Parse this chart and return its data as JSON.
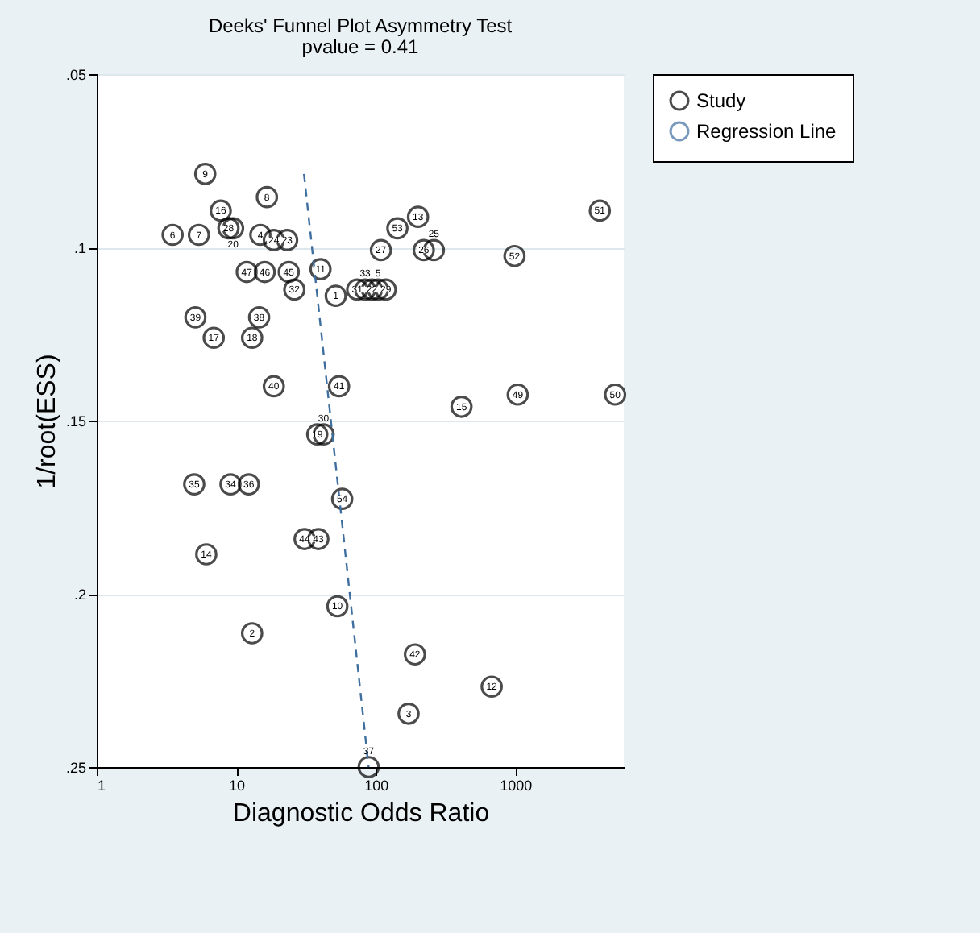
{
  "chart_data": {
    "type": "scatter",
    "title": "Deeks' Funnel Plot Asymmetry Test",
    "subtitle": "pvalue =  0.41",
    "xlabel": "Diagnostic Odds Ratio",
    "ylabel": "1/root(ESS)",
    "log": "x",
    "xlim": [
      1,
      6000
    ],
    "xticks": [
      1,
      10,
      100,
      1000
    ],
    "ylim": [
      0.25,
      0.05
    ],
    "yticks": [
      {
        "value": 0.05,
        "label": ".05"
      },
      {
        "value": 0.1,
        "label": ".1"
      },
      {
        "value": 0.15,
        "label": ".15"
      },
      {
        "value": 0.2,
        "label": ".2"
      },
      {
        "value": 0.25,
        "label": ".25"
      }
    ],
    "grid": "y",
    "legend": "top right",
    "series": [
      {
        "name": "Study",
        "type": "scatter",
        "marker": "circle",
        "color": "#000000",
        "x": [
          6.0,
          16.6,
          7.75,
          3.5,
          5.4,
          8.8,
          9.5,
          14.9,
          18.6,
          23.2,
          11.9,
          16.0,
          23.8,
          26.1,
          40.2,
          51.7,
          5.1,
          14.6,
          6.9,
          13.0,
          143,
          201,
          4040,
          109,
          221,
          261,
          988,
          73.6,
          84,
          94,
          104,
          118,
          18.6,
          54.6,
          38.1,
          42.3,
          5.0,
          9.1,
          12.3,
          57.5,
          30.9,
          38.8,
          6.1,
          53.1,
          13.0,
          89,
          412,
          1042,
          5200,
          191,
          678,
          172
        ],
        "values": [
          0.0788,
          0.0855,
          0.0894,
          0.0964,
          0.0964,
          0.0945,
          0.0945,
          0.0964,
          0.0979,
          0.0979,
          0.1071,
          0.1071,
          0.1071,
          0.1122,
          0.1063,
          0.114,
          0.1202,
          0.1202,
          0.1261,
          0.1261,
          0.0945,
          0.0912,
          0.0894,
          0.1008,
          0.1008,
          0.1008,
          0.1025,
          0.1122,
          0.1122,
          0.1122,
          0.1122,
          0.1122,
          0.1401,
          0.1401,
          0.154,
          0.154,
          0.1684,
          0.1684,
          0.1684,
          0.1726,
          0.1842,
          0.1842,
          0.1886,
          0.2036,
          0.2114,
          0.25,
          0.146,
          0.1425,
          0.1425,
          0.2175,
          0.2268,
          0.2346
        ]
      },
      {
        "name": "Regression Line",
        "type": "line",
        "color": "#3f6f9f",
        "line_style": "dashed",
        "x": [
          30.6,
          89
        ],
        "values": [
          0.0788,
          0.25
        ]
      }
    ],
    "annotations": [
      {
        "text": "9",
        "x": 6.0,
        "y": 0.0788
      },
      {
        "text": "8",
        "x": 16.6,
        "y": 0.0855
      },
      {
        "text": "16",
        "x": 7.75,
        "y": 0.0894
      },
      {
        "text": "6",
        "x": 3.5,
        "y": 0.0964
      },
      {
        "text": "7",
        "x": 5.4,
        "y": 0.0964
      },
      {
        "text": "28",
        "x": 8.8,
        "y": 0.0945
      },
      {
        "text": "20",
        "x": 9.5,
        "y": 0.0945
      },
      {
        "text": "4",
        "x": 14.9,
        "y": 0.0964
      },
      {
        "text": "24",
        "x": 18.6,
        "y": 0.0979
      },
      {
        "text": "23",
        "x": 23.2,
        "y": 0.0979
      },
      {
        "text": "47",
        "x": 11.9,
        "y": 0.1071
      },
      {
        "text": "46",
        "x": 16.0,
        "y": 0.1071
      },
      {
        "text": "45",
        "x": 23.8,
        "y": 0.1071
      },
      {
        "text": "32",
        "x": 26.1,
        "y": 0.1122
      },
      {
        "text": "11",
        "x": 40.2,
        "y": 0.1063
      },
      {
        "text": "1",
        "x": 51.7,
        "y": 0.114
      },
      {
        "text": "39",
        "x": 5.1,
        "y": 0.1202
      },
      {
        "text": "38",
        "x": 14.6,
        "y": 0.1202
      },
      {
        "text": "17",
        "x": 6.9,
        "y": 0.1261
      },
      {
        "text": "18",
        "x": 13.0,
        "y": 0.1261
      },
      {
        "text": "53",
        "x": 143,
        "y": 0.0945
      },
      {
        "text": "13",
        "x": 201,
        "y": 0.0912
      },
      {
        "text": "51",
        "x": 4040,
        "y": 0.0894
      },
      {
        "text": "27",
        "x": 109,
        "y": 0.1008
      },
      {
        "text": "26",
        "x": 221,
        "y": 0.1008
      },
      {
        "text": "25",
        "x": 261,
        "y": 0.1008
      },
      {
        "text": "52",
        "x": 988,
        "y": 0.1025
      },
      {
        "text": "31",
        "x": 73.6,
        "y": 0.1122
      },
      {
        "text": "33",
        "x": 84,
        "y": 0.1122
      },
      {
        "text": "22",
        "x": 94,
        "y": 0.1122
      },
      {
        "text": "5",
        "x": 104,
        "y": 0.1122
      },
      {
        "text": "29",
        "x": 118,
        "y": 0.1122
      },
      {
        "text": "40",
        "x": 18.6,
        "y": 0.1401
      },
      {
        "text": "41",
        "x": 54.6,
        "y": 0.1401
      },
      {
        "text": "19",
        "x": 38.1,
        "y": 0.154
      },
      {
        "text": "30",
        "x": 42.3,
        "y": 0.154
      },
      {
        "text": "35",
        "x": 5.0,
        "y": 0.1684
      },
      {
        "text": "34",
        "x": 9.1,
        "y": 0.1684
      },
      {
        "text": "36",
        "x": 12.3,
        "y": 0.1684
      },
      {
        "text": "54",
        "x": 57.5,
        "y": 0.1726
      },
      {
        "text": "44",
        "x": 30.9,
        "y": 0.1842
      },
      {
        "text": "43",
        "x": 38.8,
        "y": 0.1842
      },
      {
        "text": "14",
        "x": 6.1,
        "y": 0.1886
      },
      {
        "text": "10",
        "x": 53.1,
        "y": 0.2036
      },
      {
        "text": "2",
        "x": 13.0,
        "y": 0.2114
      },
      {
        "text": "37",
        "x": 89,
        "y": 0.25
      },
      {
        "text": "15",
        "x": 412,
        "y": 0.146
      },
      {
        "text": "49",
        "x": 1042,
        "y": 0.1425
      },
      {
        "text": "50",
        "x": 5200,
        "y": 0.1425
      },
      {
        "text": "42",
        "x": 191,
        "y": 0.2175
      },
      {
        "text": "12",
        "x": 678,
        "y": 0.2268
      },
      {
        "text": "3",
        "x": 172,
        "y": 0.2346
      }
    ]
  }
}
